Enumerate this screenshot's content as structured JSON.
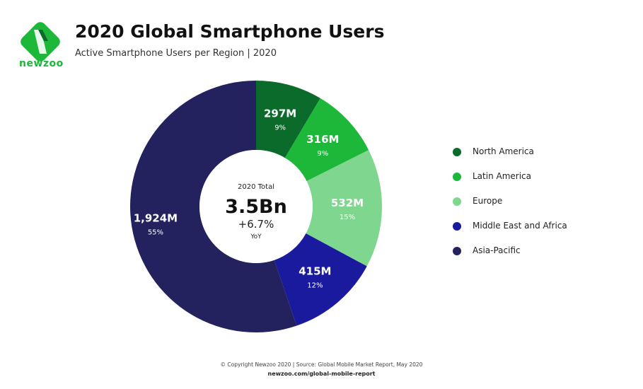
{
  "brand": {
    "logo_text": "newzoo",
    "colors": {
      "green": "#1db83a",
      "dark_green": "#0b6b2a"
    }
  },
  "header": {
    "title": "2020 Global Smartphone Users",
    "subtitle": "Active Smartphone Users per Region | 2020"
  },
  "chart_data": {
    "type": "pie",
    "variant": "donut",
    "start": "top, clockwise",
    "center": {
      "label": "2020 Total",
      "value": "3.5Bn",
      "change": "+6.7%",
      "change_label": "YoY"
    },
    "categories": [
      "North America",
      "Latin America",
      "Europe",
      "Middle East and Africa",
      "Asia-Pacific"
    ],
    "values": [
      297,
      316,
      532,
      415,
      1924
    ],
    "unit": "M",
    "value_labels": [
      "297M",
      "316M",
      "532M",
      "415M",
      "1,924M"
    ],
    "percent_labels": [
      "9%",
      "9%",
      "15%",
      "12%",
      "55%"
    ],
    "colors": [
      "#0b6b2a",
      "#1db83a",
      "#7fd68e",
      "#1a1a9e",
      "#23215e"
    ],
    "legend": "right"
  },
  "footer": {
    "copyright": "© Copyright Newzoo 2020 | Source: Global Mobile Market Report, May 2020",
    "url": "newzoo.com/global-mobile-report"
  }
}
